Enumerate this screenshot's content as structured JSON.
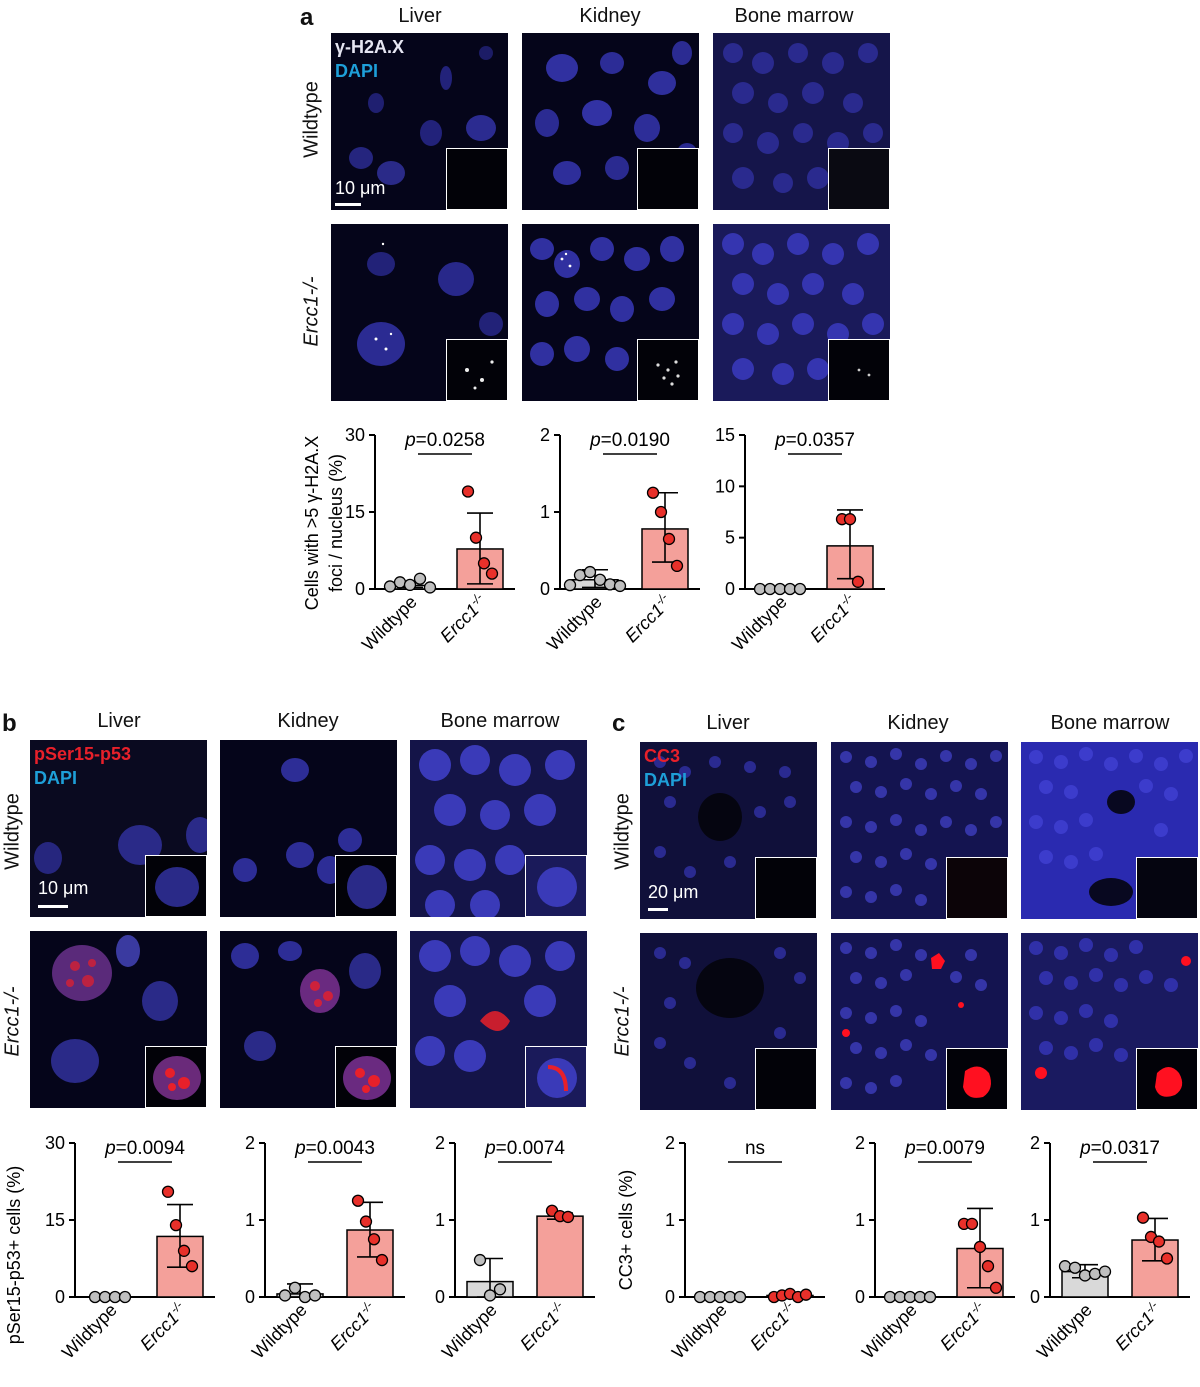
{
  "panel_a": {
    "letter": "a",
    "columns": [
      "Liver",
      "Kidney",
      "Bone marrow"
    ],
    "rows": [
      "Wildtype",
      "Ercc1-/-"
    ],
    "stain_1": "γ-H2A.X",
    "stain_2": "DAPI",
    "scale_bar": "10 μm",
    "ylabel_line1": "Cells with >5 γ-H2A.X",
    "ylabel_line2": "foci / nucleus (%)"
  },
  "panel_b": {
    "letter": "b",
    "columns": [
      "Liver",
      "Kidney",
      "Bone marrow"
    ],
    "rows": [
      "Wildtype",
      "Ercc1-/-"
    ],
    "stain_1": "pSer15-p53",
    "stain_2": "DAPI",
    "scale_bar": "10 μm",
    "ylabel": "pSer15-p53+ cells (%)"
  },
  "panel_c": {
    "letter": "c",
    "columns": [
      "Liver",
      "Kidney",
      "Bone marrow"
    ],
    "rows": [
      "Wildtype",
      "Ercc1-/-"
    ],
    "stain_1": "CC3",
    "stain_2": "DAPI",
    "scale_bar": "20 μm",
    "ylabel": "CC3+ cells (%)"
  },
  "colors": {
    "wildtype_bar": "#d9d9d9",
    "wildtype_dot": "#bfbfbf",
    "mutant_bar": "#f4a09a",
    "mutant_dot": "#e8302a",
    "dapi": "#3a3aa8",
    "stain_white": "#e6e6f2",
    "stain_red": "#e8202a",
    "dapi_label": "#1e9fd8"
  },
  "chart_data": [
    {
      "id": "a-liver",
      "type": "bar",
      "categories": [
        "Wildtype",
        "Ercc1-/-"
      ],
      "ylim": [
        0,
        30
      ],
      "yticks": [
        0,
        15,
        30
      ],
      "values": [
        0.7,
        7.8
      ],
      "err_low": [
        0.3,
        1.0
      ],
      "err_high": [
        1.2,
        14.8
      ],
      "points": [
        [
          0.5,
          1.3,
          0.8,
          2.0,
          0.3
        ],
        [
          19,
          10,
          5,
          3
        ]
      ],
      "pvalue": "=0.0258"
    },
    {
      "id": "a-kidney",
      "type": "bar",
      "categories": [
        "Wildtype",
        "Ercc1-/-"
      ],
      "ylim": [
        0,
        2
      ],
      "yticks": [
        0,
        1,
        2
      ],
      "values": [
        0.12,
        0.78
      ],
      "err_low": [
        0.02,
        0.35
      ],
      "err_high": [
        0.25,
        1.25
      ],
      "points": [
        [
          0.05,
          0.18,
          0.22,
          0.12,
          0.06,
          0.04
        ],
        [
          1.25,
          1.0,
          0.65,
          0.3
        ]
      ],
      "pvalue": "=0.0190"
    },
    {
      "id": "a-bone-marrow",
      "type": "bar",
      "categories": [
        "Wildtype",
        "Ercc1-/-"
      ],
      "ylim": [
        0,
        15
      ],
      "yticks": [
        0,
        5,
        10,
        15
      ],
      "values": [
        0.0,
        4.2
      ],
      "err_low": [
        0.0,
        1.0
      ],
      "err_high": [
        0.0,
        7.7
      ],
      "points": [
        [
          0,
          0,
          0,
          0,
          0
        ],
        [
          6.8,
          6.8,
          0.7
        ]
      ],
      "pvalue": "=0.0357"
    },
    {
      "id": "b-liver",
      "type": "bar",
      "categories": [
        "Wildtype",
        "Ercc1-/-"
      ],
      "ylim": [
        0,
        30
      ],
      "yticks": [
        0,
        15,
        30
      ],
      "values": [
        0.0,
        11.8
      ],
      "err_low": [
        0.0,
        5.8
      ],
      "err_high": [
        0.0,
        18.0
      ],
      "points": [
        [
          0,
          0,
          0,
          0
        ],
        [
          20.5,
          14,
          9,
          6
        ]
      ],
      "pvalue": "=0.0094"
    },
    {
      "id": "b-kidney",
      "type": "bar",
      "categories": [
        "Wildtype",
        "Ercc1-/-"
      ],
      "ylim": [
        0,
        2
      ],
      "yticks": [
        0,
        1,
        2
      ],
      "values": [
        0.04,
        0.87
      ],
      "err_low": [
        0.0,
        0.52
      ],
      "err_high": [
        0.17,
        1.23
      ],
      "points": [
        [
          0.02,
          0.12,
          0.0,
          0.02
        ],
        [
          1.25,
          0.98,
          0.75,
          0.48
        ]
      ],
      "pvalue": "=0.0043"
    },
    {
      "id": "b-bone-marrow",
      "type": "bar",
      "categories": [
        "Wildtype",
        "Ercc1-/-"
      ],
      "ylim": [
        0,
        2
      ],
      "yticks": [
        0,
        1,
        2
      ],
      "values": [
        0.2,
        1.05
      ],
      "err_low": [
        0.0,
        1.01
      ],
      "err_high": [
        0.5,
        1.09
      ],
      "points": [
        [
          0.48,
          0.02,
          0.1
        ],
        [
          1.12,
          1.05,
          1.04
        ]
      ],
      "pvalue": "=0.0074"
    },
    {
      "id": "c-liver",
      "type": "bar",
      "categories": [
        "Wildtype",
        "Ercc1-/-"
      ],
      "ylim": [
        0,
        2
      ],
      "yticks": [
        0,
        1,
        2
      ],
      "values": [
        0.0,
        0.02
      ],
      "err_low": [
        0.0,
        0.0
      ],
      "err_high": [
        0.0,
        0.04
      ],
      "points": [
        [
          0,
          0,
          0,
          0,
          0
        ],
        [
          0,
          0.02,
          0.04,
          0.0,
          0.03
        ]
      ],
      "pvalue": "ns"
    },
    {
      "id": "c-kidney",
      "type": "bar",
      "categories": [
        "Wildtype",
        "Ercc1-/-"
      ],
      "ylim": [
        0,
        2
      ],
      "yticks": [
        0,
        1,
        2
      ],
      "values": [
        0.0,
        0.63
      ],
      "err_low": [
        0.0,
        0.12
      ],
      "err_high": [
        0.0,
        1.15
      ],
      "points": [
        [
          0,
          0,
          0,
          0,
          0
        ],
        [
          0.95,
          0.95,
          0.65,
          0.4,
          0.12
        ]
      ],
      "pvalue": "=0.0079"
    },
    {
      "id": "c-bone-marrow",
      "type": "bar",
      "categories": [
        "Wildtype",
        "Ercc1-/-"
      ],
      "ylim": [
        0,
        2
      ],
      "yticks": [
        0,
        1,
        2
      ],
      "values": [
        0.33,
        0.74
      ],
      "err_low": [
        0.25,
        0.47
      ],
      "err_high": [
        0.42,
        1.02
      ],
      "points": [
        [
          0.4,
          0.38,
          0.28,
          0.3,
          0.33
        ],
        [
          1.03,
          0.78,
          0.72,
          0.5
        ]
      ],
      "pvalue": "=0.0317"
    }
  ]
}
